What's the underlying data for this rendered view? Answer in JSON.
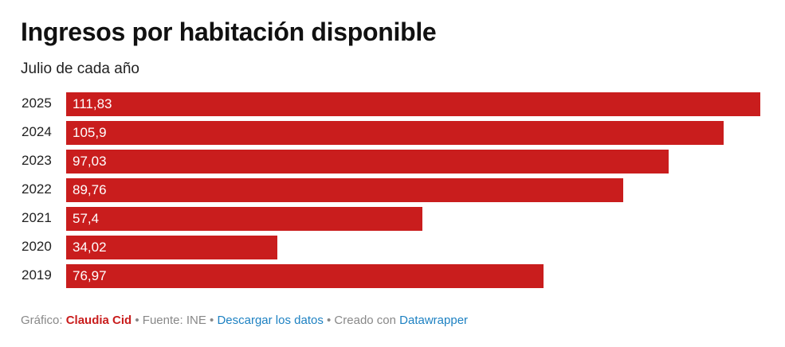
{
  "title": "Ingresos por habitación disponible",
  "subtitle": "Julio de cada año",
  "chart_data": {
    "type": "bar",
    "orientation": "horizontal",
    "categories": [
      "2025",
      "2024",
      "2023",
      "2022",
      "2021",
      "2020",
      "2019"
    ],
    "values": [
      111.83,
      105.9,
      97.03,
      89.76,
      57.4,
      34.02,
      76.97
    ],
    "labels": [
      "111,83",
      "105,9",
      "97,03",
      "89,76",
      "57,4",
      "34,02",
      "76,97"
    ],
    "xlim": [
      0,
      111.83
    ],
    "bar_color": "#c91d1d",
    "grid": false
  },
  "footer": {
    "grafico_label": "Gráfico:",
    "author": "Claudia Cid",
    "fuente": "• Fuente: INE •",
    "download": "Descargar los datos",
    "creado": "• Creado con",
    "tool": "Datawrapper"
  }
}
